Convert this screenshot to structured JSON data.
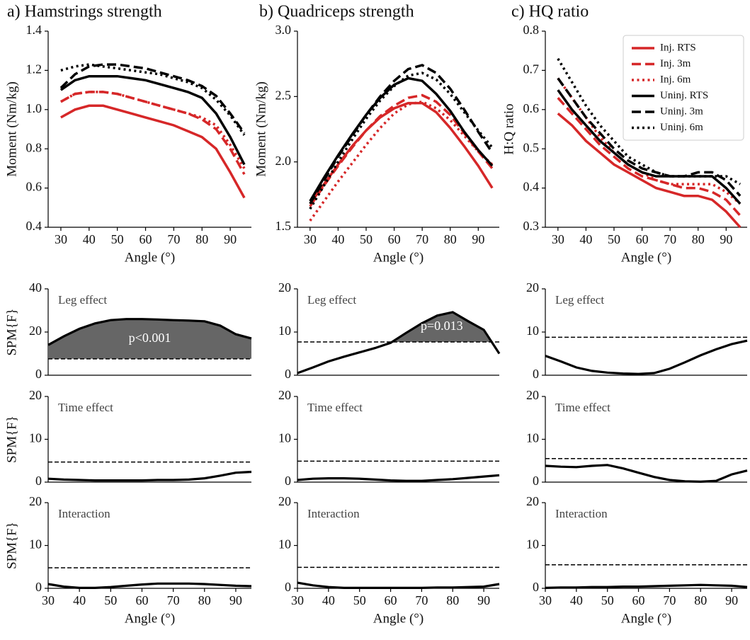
{
  "chart_data": [
    {
      "type": "line",
      "title": "a)  Hamstrings strength",
      "xlabel": "Angle (°)",
      "ylabel": "Moment (Nm/kg)",
      "x": [
        30,
        35,
        40,
        45,
        50,
        55,
        60,
        65,
        70,
        75,
        80,
        85,
        90,
        95
      ],
      "xlim": [
        25.5,
        97.5
      ],
      "ylim": [
        0.4,
        1.4
      ],
      "xticks": [
        30,
        40,
        50,
        60,
        70,
        80,
        90
      ],
      "yticks": [
        0.4,
        0.6,
        0.8,
        {
          "value": 1,
          "label": "1.0"
        },
        1.2,
        1.4
      ],
      "series": [
        {
          "color": "#d62728",
          "style": "solid",
          "values": [
            0.96,
            1.0,
            1.02,
            1.02,
            1.0,
            0.98,
            0.96,
            0.94,
            0.92,
            0.89,
            0.86,
            0.8,
            0.68,
            0.55
          ]
        },
        {
          "color": "#d62728",
          "style": "dashed",
          "values": [
            1.04,
            1.08,
            1.09,
            1.09,
            1.08,
            1.06,
            1.04,
            1.02,
            1.0,
            0.98,
            0.95,
            0.9,
            0.8,
            0.67
          ]
        },
        {
          "color": "#d62728",
          "style": "dotted",
          "values": [
            1.04,
            1.08,
            1.09,
            1.09,
            1.08,
            1.06,
            1.04,
            1.02,
            1.0,
            0.98,
            0.96,
            0.92,
            0.82,
            0.7
          ]
        },
        {
          "color": "#000000",
          "style": "solid",
          "values": [
            1.1,
            1.15,
            1.17,
            1.17,
            1.17,
            1.16,
            1.15,
            1.13,
            1.11,
            1.09,
            1.06,
            0.98,
            0.86,
            0.72
          ]
        },
        {
          "color": "#000000",
          "style": "dashed",
          "values": [
            1.11,
            1.18,
            1.22,
            1.23,
            1.23,
            1.22,
            1.21,
            1.19,
            1.17,
            1.15,
            1.12,
            1.07,
            0.98,
            0.88
          ]
        },
        {
          "color": "#000000",
          "style": "dotted",
          "values": [
            1.2,
            1.22,
            1.23,
            1.22,
            1.21,
            1.2,
            1.19,
            1.18,
            1.16,
            1.14,
            1.11,
            1.05,
            0.97,
            0.87
          ]
        }
      ]
    },
    {
      "type": "line",
      "title": "b) Quadriceps strength",
      "xlabel": "Angle (°)",
      "ylabel": "Moment (Nm/kg)",
      "x": [
        30,
        35,
        40,
        45,
        50,
        55,
        60,
        65,
        70,
        75,
        80,
        85,
        90,
        95
      ],
      "xlim": [
        25.5,
        97.5
      ],
      "ylim": [
        1.5,
        3.0
      ],
      "xticks": [
        30,
        40,
        50,
        60,
        70,
        80,
        90
      ],
      "yticks": [
        1.5,
        {
          "value": 2,
          "label": "2.0"
        },
        2.5,
        {
          "value": 3,
          "label": "3.0"
        }
      ],
      "series": [
        {
          "color": "#d62728",
          "style": "solid",
          "values": [
            1.68,
            1.83,
            1.98,
            2.12,
            2.24,
            2.34,
            2.41,
            2.45,
            2.45,
            2.38,
            2.26,
            2.12,
            1.97,
            1.8
          ]
        },
        {
          "color": "#d62728",
          "style": "dashed",
          "values": [
            1.66,
            1.82,
            1.97,
            2.11,
            2.24,
            2.35,
            2.43,
            2.49,
            2.51,
            2.46,
            2.36,
            2.22,
            2.08,
            1.95
          ]
        },
        {
          "color": "#d62728",
          "style": "dotted",
          "values": [
            1.55,
            1.7,
            1.85,
            1.99,
            2.13,
            2.26,
            2.37,
            2.44,
            2.46,
            2.41,
            2.32,
            2.2,
            2.08,
            1.98
          ]
        },
        {
          "color": "#000000",
          "style": "solid",
          "values": [
            1.7,
            1.88,
            2.05,
            2.21,
            2.36,
            2.49,
            2.59,
            2.64,
            2.62,
            2.52,
            2.39,
            2.23,
            2.09,
            1.97
          ]
        },
        {
          "color": "#000000",
          "style": "dashed",
          "values": [
            1.68,
            1.86,
            2.04,
            2.2,
            2.36,
            2.5,
            2.62,
            2.71,
            2.74,
            2.68,
            2.56,
            2.4,
            2.23,
            2.07
          ]
        },
        {
          "color": "#000000",
          "style": "dotted",
          "values": [
            1.64,
            1.82,
            2.0,
            2.17,
            2.33,
            2.47,
            2.58,
            2.66,
            2.68,
            2.63,
            2.52,
            2.38,
            2.24,
            2.11
          ]
        }
      ]
    },
    {
      "type": "line",
      "title": "c) HQ ratio",
      "xlabel": "Angle (°)",
      "ylabel": "H:Q ratio",
      "legend": "upper right",
      "x": [
        30,
        35,
        40,
        45,
        50,
        55,
        60,
        65,
        70,
        75,
        80,
        85,
        90,
        95
      ],
      "xlim": [
        25.5,
        97.5
      ],
      "ylim": [
        0.3,
        0.8
      ],
      "xticks": [
        30,
        40,
        50,
        60,
        70,
        80,
        90
      ],
      "yticks": [
        0.3,
        0.4,
        0.5,
        0.6,
        0.7,
        0.8
      ],
      "series": [
        {
          "name": "Inj. RTS",
          "color": "#d62728",
          "style": "solid",
          "values": [
            0.59,
            0.56,
            0.52,
            0.49,
            0.46,
            0.44,
            0.42,
            0.4,
            0.39,
            0.38,
            0.38,
            0.37,
            0.34,
            0.3
          ]
        },
        {
          "name": "Inj. 3m",
          "color": "#d62728",
          "style": "dashed",
          "values": [
            0.63,
            0.59,
            0.55,
            0.51,
            0.48,
            0.45,
            0.43,
            0.42,
            0.41,
            0.4,
            0.4,
            0.39,
            0.37,
            0.33
          ]
        },
        {
          "name": "Inj. 6m",
          "color": "#d62728",
          "style": "dotted",
          "values": [
            0.68,
            0.63,
            0.58,
            0.53,
            0.49,
            0.46,
            0.44,
            0.42,
            0.41,
            0.41,
            0.41,
            0.41,
            0.39,
            0.36
          ]
        },
        {
          "name": "Uninj. RTS",
          "color": "#000000",
          "style": "solid",
          "values": [
            0.65,
            0.6,
            0.56,
            0.52,
            0.49,
            0.46,
            0.44,
            0.43,
            0.43,
            0.43,
            0.43,
            0.43,
            0.4,
            0.36
          ]
        },
        {
          "name": "Uninj. 3m",
          "color": "#000000",
          "style": "dashed",
          "values": [
            0.68,
            0.63,
            0.58,
            0.54,
            0.5,
            0.47,
            0.45,
            0.44,
            0.43,
            0.43,
            0.44,
            0.44,
            0.42,
            0.38
          ]
        },
        {
          "name": "Uninj. 6m",
          "color": "#000000",
          "style": "dotted",
          "values": [
            0.73,
            0.67,
            0.61,
            0.56,
            0.52,
            0.48,
            0.46,
            0.44,
            0.43,
            0.43,
            0.43,
            0.43,
            0.43,
            0.41
          ]
        }
      ]
    },
    {
      "type": "spm",
      "title": "Leg effect",
      "ylabel": "SPM{F}",
      "annotation": "p<0.001",
      "x": [
        30,
        35,
        40,
        45,
        50,
        55,
        60,
        65,
        70,
        75,
        80,
        85,
        90,
        95
      ],
      "values": [
        14,
        18,
        21.5,
        24,
        25.5,
        26,
        26,
        25.8,
        25.5,
        25.3,
        25,
        23,
        19,
        17
      ],
      "threshold": 7.6,
      "xlim": [
        30,
        95
      ],
      "ylim": [
        0,
        40
      ],
      "yticks": [
        0,
        20,
        40
      ]
    },
    {
      "type": "spm",
      "title": "Leg effect",
      "annotation": "p=0.013",
      "x": [
        30,
        35,
        40,
        45,
        50,
        55,
        60,
        65,
        70,
        75,
        80,
        85,
        90,
        95
      ],
      "values": [
        0.5,
        1.8,
        3.2,
        4.3,
        5.3,
        6.3,
        7.5,
        9.8,
        12,
        13.8,
        14.6,
        12.5,
        10.5,
        5
      ],
      "threshold": 7.7,
      "xlim": [
        30,
        95
      ],
      "ylim": [
        0,
        20
      ],
      "yticks": [
        0,
        10,
        20
      ]
    },
    {
      "type": "spm",
      "title": "Leg effect",
      "x": [
        30,
        35,
        40,
        45,
        50,
        55,
        60,
        65,
        70,
        75,
        80,
        85,
        90,
        95
      ],
      "values": [
        4.5,
        3.2,
        1.8,
        1.0,
        0.6,
        0.4,
        0.3,
        0.5,
        1.5,
        3,
        4.6,
        6,
        7.2,
        8
      ],
      "threshold": 8.8,
      "xlim": [
        30,
        95
      ],
      "ylim": [
        0,
        20
      ],
      "yticks": [
        0,
        10,
        20
      ]
    },
    {
      "type": "spm",
      "title": "Time effect",
      "ylabel": "SPM{F}",
      "x": [
        30,
        35,
        40,
        45,
        50,
        55,
        60,
        65,
        70,
        75,
        80,
        85,
        90,
        95
      ],
      "values": [
        0.8,
        0.6,
        0.5,
        0.4,
        0.4,
        0.4,
        0.4,
        0.5,
        0.5,
        0.6,
        0.9,
        1.5,
        2.2,
        2.4
      ],
      "threshold": 4.7,
      "xlim": [
        30,
        95
      ],
      "ylim": [
        0,
        20
      ],
      "yticks": [
        0,
        10,
        20
      ]
    },
    {
      "type": "spm",
      "title": "Time effect",
      "x": [
        30,
        35,
        40,
        45,
        50,
        55,
        60,
        65,
        70,
        75,
        80,
        85,
        90,
        95
      ],
      "values": [
        0.5,
        0.8,
        0.9,
        0.9,
        0.8,
        0.6,
        0.4,
        0.3,
        0.3,
        0.5,
        0.7,
        1.0,
        1.3,
        1.6
      ],
      "threshold": 4.9,
      "xlim": [
        30,
        95
      ],
      "ylim": [
        0,
        20
      ],
      "yticks": [
        0,
        10,
        20
      ]
    },
    {
      "type": "spm",
      "title": "Time effect",
      "x": [
        30,
        35,
        40,
        45,
        50,
        55,
        60,
        65,
        70,
        75,
        80,
        85,
        90,
        95
      ],
      "values": [
        3.8,
        3.6,
        3.5,
        3.8,
        4.0,
        3.2,
        2.2,
        1.2,
        0.5,
        0.2,
        0.1,
        0.3,
        1.8,
        2.7
      ],
      "threshold": 5.5,
      "xlim": [
        30,
        95
      ],
      "ylim": [
        0,
        20
      ],
      "yticks": [
        0,
        10,
        20
      ]
    },
    {
      "type": "spm",
      "title": "Interaction",
      "ylabel": "SPM{F}",
      "xlabel": "Angle (°)",
      "x": [
        30,
        35,
        40,
        45,
        50,
        55,
        60,
        65,
        70,
        75,
        80,
        85,
        90,
        95
      ],
      "values": [
        1.0,
        0.4,
        0.1,
        0.1,
        0.3,
        0.6,
        0.9,
        1.1,
        1.1,
        1.1,
        1.0,
        0.8,
        0.6,
        0.5
      ],
      "threshold": 4.8,
      "xlim": [
        30,
        95
      ],
      "ylim": [
        0,
        20
      ],
      "yticks": [
        0,
        10,
        20
      ],
      "xticks": [
        30,
        40,
        50,
        60,
        70,
        80,
        90
      ]
    },
    {
      "type": "spm",
      "title": "Interaction",
      "xlabel": "Angle (°)",
      "x": [
        30,
        35,
        40,
        45,
        50,
        55,
        60,
        65,
        70,
        75,
        80,
        85,
        90,
        95
      ],
      "values": [
        1.3,
        0.7,
        0.3,
        0.1,
        0.1,
        0.1,
        0.1,
        0.1,
        0.1,
        0.2,
        0.2,
        0.3,
        0.4,
        1.0
      ],
      "threshold": 4.9,
      "xlim": [
        30,
        95
      ],
      "ylim": [
        0,
        20
      ],
      "yticks": [
        0,
        10,
        20
      ],
      "xticks": [
        30,
        40,
        50,
        60,
        70,
        80,
        90
      ]
    },
    {
      "type": "spm",
      "title": "Interaction",
      "xlabel": "Angle (°)",
      "x": [
        30,
        35,
        40,
        45,
        50,
        55,
        60,
        65,
        70,
        75,
        80,
        85,
        90,
        95
      ],
      "values": [
        0.1,
        0.2,
        0.2,
        0.3,
        0.3,
        0.4,
        0.4,
        0.5,
        0.6,
        0.7,
        0.8,
        0.7,
        0.6,
        0.3
      ],
      "threshold": 5.5,
      "xlim": [
        30,
        95
      ],
      "ylim": [
        0,
        20
      ],
      "yticks": [
        0,
        10,
        20
      ],
      "xticks": [
        30,
        40,
        50,
        60,
        70,
        80,
        90
      ]
    }
  ]
}
